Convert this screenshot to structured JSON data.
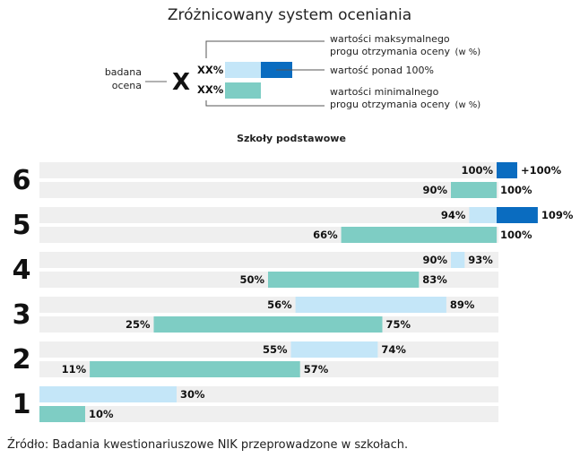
{
  "chart_data": {
    "type": "bar",
    "title": "Zróżnicowany system oceniania",
    "subtitle": "Szkoły podstawowe",
    "source": "Źródło: Badania kwestionariuszowe NIK przeprowadzone w szkołach.",
    "legend": {
      "left_label_line1": "badana",
      "left_label_line2": "ocena",
      "grade_symbol": "X",
      "top_value": "XX%",
      "bottom_value": "XX%",
      "max_line1": "wartości maksymalnego",
      "max_line2": "progu otrzymania oceny",
      "max_unit": "(w %)",
      "over_label": "wartość ponad 100%",
      "min_line1": "wartości minimalnego",
      "min_line2": "progu otrzymania oceny",
      "min_unit": "(w %)"
    },
    "colors": {
      "track": "#efefef",
      "max_range": "#c4e6f8",
      "over_100": "#0a6cc0",
      "min_range": "#7ecdc4"
    },
    "axis_range": [
      0,
      115
    ],
    "grades": [
      {
        "grade": "6",
        "max": {
          "from": 100,
          "to": 100,
          "over": "+100%",
          "from_label": "100%",
          "to_label": "+100%"
        },
        "min": {
          "from": 90,
          "to": 100,
          "from_label": "90%",
          "to_label": "100%"
        }
      },
      {
        "grade": "5",
        "max": {
          "from": 94,
          "to": 100,
          "over_to": 109,
          "from_label": "94%",
          "to_label": "109%"
        },
        "min": {
          "from": 66,
          "to": 100,
          "from_label": "66%",
          "to_label": "100%"
        }
      },
      {
        "grade": "4",
        "max": {
          "from": 90,
          "to": 93,
          "from_label": "90%",
          "to_label": "93%"
        },
        "min": {
          "from": 50,
          "to": 83,
          "from_label": "50%",
          "to_label": "83%"
        }
      },
      {
        "grade": "3",
        "max": {
          "from": 56,
          "to": 89,
          "from_label": "56%",
          "to_label": "89%"
        },
        "min": {
          "from": 25,
          "to": 75,
          "from_label": "25%",
          "to_label": "75%"
        }
      },
      {
        "grade": "2",
        "max": {
          "from": 55,
          "to": 74,
          "from_label": "55%",
          "to_label": "74%"
        },
        "min": {
          "from": 11,
          "to": 57,
          "from_label": "11%",
          "to_label": "57%"
        }
      },
      {
        "grade": "1",
        "max": {
          "from": 0,
          "to": 30,
          "from_label": "",
          "to_label": "30%"
        },
        "min": {
          "from": 0,
          "to": 10,
          "from_label": "",
          "to_label": "10%"
        }
      }
    ]
  }
}
